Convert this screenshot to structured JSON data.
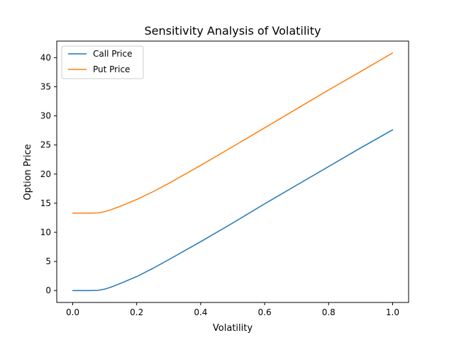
{
  "chart_data": {
    "type": "line",
    "title": "Sensitivity Analysis of Volatility",
    "xlabel": "Volatility",
    "ylabel": "Option Price",
    "xlim": [
      -0.05,
      1.05
    ],
    "ylim": [
      -2.04,
      42.84
    ],
    "xticks": [
      0.0,
      0.2,
      0.4,
      0.6,
      0.8,
      1.0
    ],
    "xtick_labels": [
      "0.0",
      "0.2",
      "0.4",
      "0.6",
      "0.8",
      "1.0"
    ],
    "yticks": [
      0,
      5,
      10,
      15,
      20,
      25,
      30,
      35,
      40
    ],
    "ytick_labels": [
      "0",
      "5",
      "10",
      "15",
      "20",
      "25",
      "30",
      "35",
      "40"
    ],
    "grid": false,
    "legend_position": "top-left",
    "x": [
      0.0,
      0.05,
      0.08,
      0.1,
      0.12,
      0.15,
      0.2,
      0.25,
      0.3,
      0.4,
      0.5,
      0.6,
      0.7,
      0.8,
      0.9,
      1.0
    ],
    "series": [
      {
        "name": "Call Price",
        "color": "#1f77b4",
        "values": [
          0.0,
          0.0,
          0.05,
          0.25,
          0.6,
          1.25,
          2.4,
          3.8,
          5.3,
          8.4,
          11.6,
          14.9,
          18.1,
          21.3,
          24.5,
          27.6
        ]
      },
      {
        "name": "Put Price",
        "color": "#ff7f0e",
        "values": [
          13.3,
          13.3,
          13.35,
          13.55,
          13.9,
          14.5,
          15.65,
          16.95,
          18.4,
          21.5,
          24.7,
          27.95,
          31.2,
          34.45,
          37.6,
          40.8
        ]
      }
    ]
  }
}
